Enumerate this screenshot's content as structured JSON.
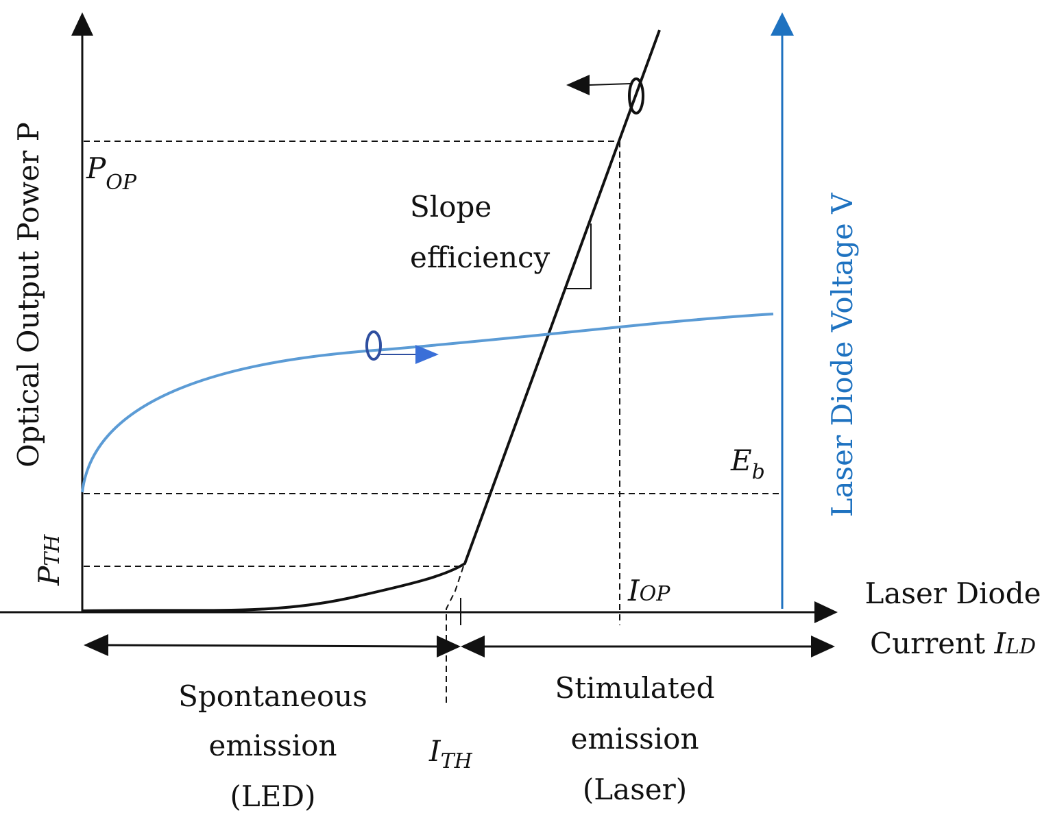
{
  "diagram": {
    "labels": {
      "y_axis_left": "Optical Output Power P",
      "y_axis_right": "Laser Diode Voltage V",
      "x_axis_line1": "Laser Diode",
      "x_axis_line2": "Current ",
      "x_axis_symbol": "I",
      "x_axis_sub": "LD",
      "p_op": "P",
      "p_op_sub": "OP",
      "p_th": "P",
      "p_th_sub": "TH",
      "e_b": "E",
      "e_b_sub": "b",
      "i_op": "I",
      "i_op_sub": "OP",
      "i_th": "I",
      "i_th_sub": "TH",
      "slope_line1": "Slope",
      "slope_line2": "efficiency",
      "spont_line1": "Spontaneous",
      "spont_line2": "emission",
      "spont_line3": "(LED)",
      "stim_line1": "Stimulated",
      "stim_line2": "emission",
      "stim_line3": "(Laser)"
    },
    "colors": {
      "power_curve": "#111111",
      "voltage_curve": "#5b9bd5",
      "voltage_axis": "#1e72c0",
      "voltage_marker": "#2f4fa0",
      "voltage_arrow": "#3a6fd8",
      "dashed": "#111111"
    }
  }
}
